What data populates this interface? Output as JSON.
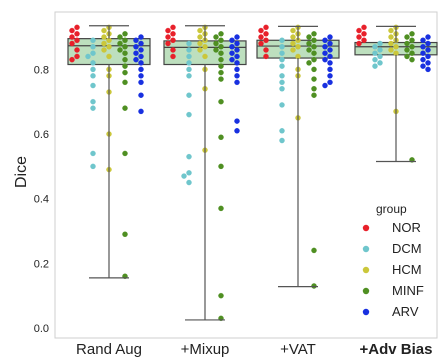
{
  "chart_data": {
    "type": "box+swarm",
    "title": "",
    "xlabel": "",
    "ylabel": "Dice",
    "ylim": [
      0.0,
      0.95
    ],
    "yticks": [
      0.0,
      0.2,
      0.4,
      0.6,
      0.8
    ],
    "grid": false,
    "categories": [
      {
        "label": "Rand Aug",
        "bold": false
      },
      {
        "label": "+Mixup",
        "bold": false
      },
      {
        "label": "+VAT",
        "bold": false
      },
      {
        "label": "+Adv Bias",
        "bold": true
      }
    ],
    "boxes": [
      {
        "min": 0.155,
        "q1": 0.815,
        "median": 0.873,
        "q3": 0.895,
        "max": 0.935
      },
      {
        "min": 0.025,
        "q1": 0.815,
        "median": 0.868,
        "q3": 0.888,
        "max": 0.935
      },
      {
        "min": 0.128,
        "q1": 0.835,
        "median": 0.872,
        "q3": 0.89,
        "max": 0.933
      },
      {
        "min": 0.515,
        "q1": 0.845,
        "median": 0.87,
        "q3": 0.883,
        "max": 0.933
      }
    ],
    "legend": {
      "title": "group",
      "position": "lower-right",
      "entries": [
        {
          "name": "NOR",
          "color": "#e8202a"
        },
        {
          "name": "DCM",
          "color": "#6fc6cc"
        },
        {
          "name": "HCM",
          "color": "#cbc73a"
        },
        {
          "name": "MINF",
          "color": "#4f8f22"
        },
        {
          "name": "ARV",
          "color": "#1830e0"
        }
      ]
    },
    "series": [
      {
        "name": "NOR",
        "color": "#e8202a",
        "points": [
          [
            [
              0.93,
              0.92,
              0.91,
              0.9,
              0.89,
              0.88,
              0.86,
              0.84,
              0.83
            ],
            [
              0.93,
              0.92,
              0.91,
              0.9,
              0.89,
              0.88,
              0.86,
              0.84
            ],
            [
              0.93,
              0.92,
              0.91,
              0.9,
              0.89,
              0.88,
              0.86,
              0.84
            ],
            [
              0.93,
              0.92,
              0.91,
              0.9,
              0.89,
              0.88
            ]
          ]
        ]
      },
      {
        "name": "DCM",
        "color": "#6fc6cc",
        "points": [
          [
            [
              0.89,
              0.87,
              0.85,
              0.84,
              0.82,
              0.8,
              0.78,
              0.75,
              0.7,
              0.68,
              0.54,
              0.5
            ],
            [
              0.88,
              0.86,
              0.84,
              0.82,
              0.8,
              0.78,
              0.72,
              0.66,
              0.53,
              0.48,
              0.47,
              0.45
            ],
            [
              0.89,
              0.87,
              0.85,
              0.83,
              0.81,
              0.78,
              0.76,
              0.74,
              0.69,
              0.61,
              0.58
            ],
            [
              0.88,
              0.87,
              0.86,
              0.85,
              0.84,
              0.83,
              0.82,
              0.81
            ]
          ]
        ]
      },
      {
        "name": "HCM",
        "color": "#cbc73a",
        "points": [
          [
            [
              0.93,
              0.92,
              0.91,
              0.9,
              0.89,
              0.88,
              0.87,
              0.86,
              0.84,
              0.8,
              0.78,
              0.73,
              0.6,
              0.49
            ],
            [
              0.93,
              0.92,
              0.91,
              0.9,
              0.89,
              0.88,
              0.87,
              0.86,
              0.84,
              0.8,
              0.74,
              0.55
            ],
            [
              0.93,
              0.92,
              0.91,
              0.9,
              0.89,
              0.88,
              0.87,
              0.86,
              0.84,
              0.8,
              0.78,
              0.65
            ],
            [
              0.93,
              0.92,
              0.91,
              0.9,
              0.89,
              0.88,
              0.87,
              0.86,
              0.85,
              0.67
            ]
          ]
        ]
      },
      {
        "name": "MINF",
        "color": "#4f8f22",
        "points": [
          [
            [
              0.91,
              0.9,
              0.89,
              0.88,
              0.87,
              0.86,
              0.85,
              0.83,
              0.81,
              0.79,
              0.76,
              0.68,
              0.54,
              0.29,
              0.16
            ],
            [
              0.91,
              0.9,
              0.89,
              0.88,
              0.87,
              0.86,
              0.85,
              0.83,
              0.81,
              0.79,
              0.77,
              0.7,
              0.59,
              0.5,
              0.37,
              0.1,
              0.03
            ],
            [
              0.91,
              0.9,
              0.89,
              0.88,
              0.87,
              0.86,
              0.85,
              0.83,
              0.82,
              0.8,
              0.77,
              0.74,
              0.72,
              0.24,
              0.13
            ],
            [
              0.91,
              0.9,
              0.89,
              0.88,
              0.87,
              0.86,
              0.85,
              0.84,
              0.83,
              0.52
            ]
          ]
        ]
      },
      {
        "name": "ARV",
        "color": "#1830e0",
        "points": [
          [
            [
              0.9,
              0.89,
              0.88,
              0.87,
              0.86,
              0.85,
              0.84,
              0.83,
              0.82,
              0.8,
              0.78,
              0.76,
              0.72,
              0.67
            ],
            [
              0.9,
              0.89,
              0.88,
              0.87,
              0.86,
              0.85,
              0.84,
              0.83,
              0.82,
              0.8,
              0.78,
              0.76,
              0.64,
              0.61
            ],
            [
              0.9,
              0.89,
              0.88,
              0.87,
              0.86,
              0.85,
              0.84,
              0.83,
              0.82,
              0.8,
              0.78,
              0.76,
              0.75
            ],
            [
              0.9,
              0.89,
              0.88,
              0.87,
              0.86,
              0.85,
              0.84,
              0.83,
              0.82,
              0.81,
              0.8
            ]
          ]
        ]
      }
    ]
  }
}
